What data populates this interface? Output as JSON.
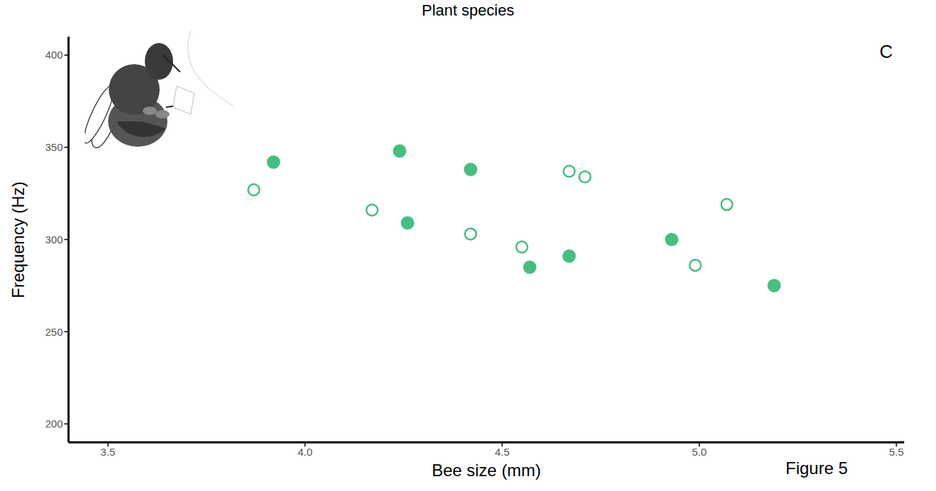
{
  "chart_data": {
    "type": "scatter",
    "title": "Plant species",
    "x_label": "Bee size (mm)",
    "y_label": "Frequency (Hz)",
    "panel": "C",
    "caption": "Figure 5",
    "xlim": [
      3.4,
      5.52
    ],
    "xticks": [
      {
        "value": 3.5,
        "label": "3.5"
      },
      {
        "value": 4,
        "label": "4.0"
      },
      {
        "value": 4.5,
        "label": "4.5"
      },
      {
        "value": 5,
        "label": "5.0"
      },
      {
        "value": 5.5,
        "label": "5.5"
      }
    ],
    "ylim": [
      190,
      410
    ],
    "yticks": [
      200,
      250,
      300,
      350,
      400
    ],
    "grid": false,
    "series": [
      {
        "color": "#45bf80",
        "marker": "filled",
        "x": [
          3.92,
          4.24,
          4.26,
          4.42,
          4.57,
          4.67,
          4.93,
          5.19
        ],
        "values": [
          342,
          348,
          309,
          338,
          285,
          291,
          300,
          275
        ]
      },
      {
        "color": "#45bf80",
        "marker": "open",
        "x": [
          3.87,
          4.17,
          4.42,
          4.55,
          4.67,
          4.71,
          4.99,
          5.07
        ],
        "values": [
          327,
          316,
          303,
          296,
          337,
          334,
          286,
          319
        ]
      }
    ]
  }
}
